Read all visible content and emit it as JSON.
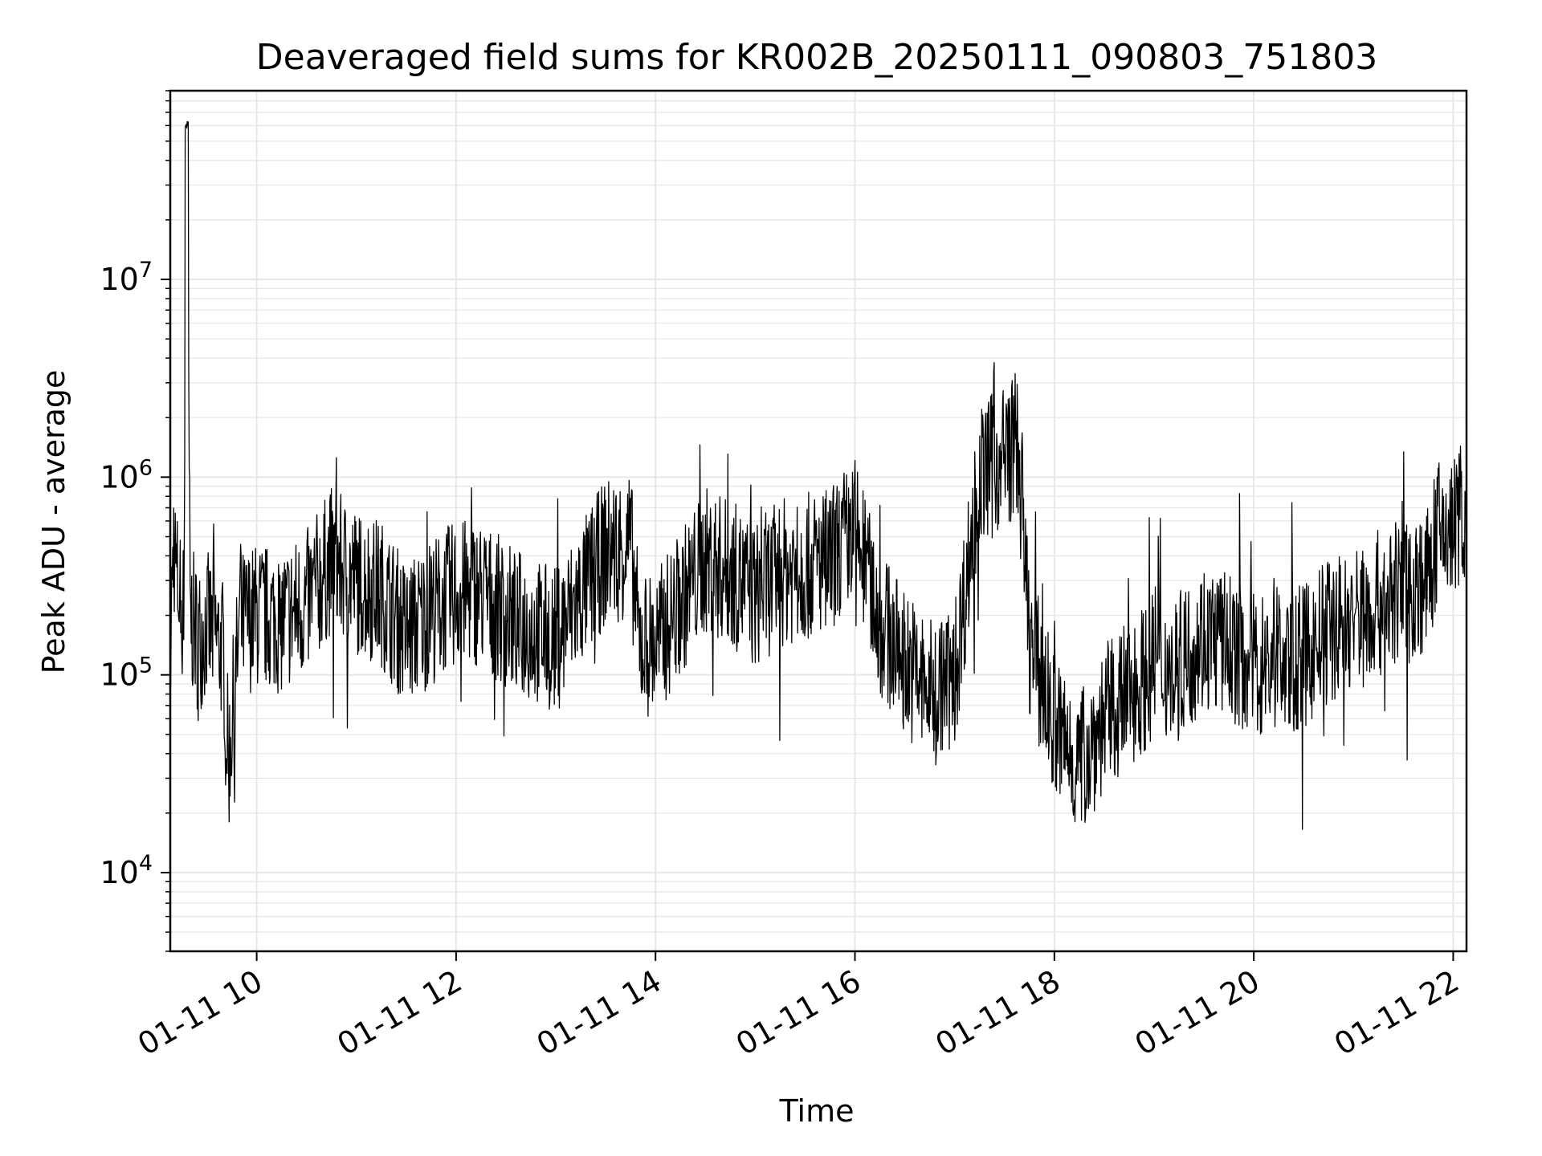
{
  "chart_data": {
    "type": "line",
    "title": "Deaveraged field sums for KR002B_20250111_090803_751803",
    "xlabel": "Time",
    "ylabel": "Peak ADU - average",
    "y_scale": "log",
    "grid": true,
    "legend": "none",
    "line_color": "#000000",
    "grid_color": "#e5e5e5",
    "xlim": [
      "2025-01-11 09:08",
      "2025-01-11 22:08"
    ],
    "ylim": [
      4000,
      90000000
    ],
    "x_ticks": [
      {
        "value": "2025-01-11 10:00",
        "label": "01-11 10"
      },
      {
        "value": "2025-01-11 12:00",
        "label": "01-11 12"
      },
      {
        "value": "2025-01-11 14:00",
        "label": "01-11 14"
      },
      {
        "value": "2025-01-11 16:00",
        "label": "01-11 16"
      },
      {
        "value": "2025-01-11 18:00",
        "label": "01-11 18"
      },
      {
        "value": "2025-01-11 20:00",
        "label": "01-11 20"
      },
      {
        "value": "2025-01-11 22:00",
        "label": "01-11 22"
      }
    ],
    "y_ticks": [
      {
        "value": 10000,
        "base": "10",
        "exp": "4"
      },
      {
        "value": 100000,
        "base": "10",
        "exp": "5"
      },
      {
        "value": 1000000,
        "base": "10",
        "exp": "6"
      },
      {
        "value": 10000000,
        "base": "10",
        "exp": "7"
      }
    ],
    "series": [
      {
        "x": [
          "2025-01-11 09:08",
          "2025-01-11 09:10",
          "2025-01-11 09:12",
          "2025-01-11 09:14",
          "2025-01-11 09:16",
          "2025-01-11 09:18",
          "2025-01-11 09:20",
          "2025-01-11 09:25",
          "2025-01-11 09:30",
          "2025-01-11 09:35",
          "2025-01-11 09:40",
          "2025-01-11 09:43",
          "2025-01-11 09:50",
          "2025-01-11 10:00",
          "2025-01-11 10:15",
          "2025-01-11 10:30",
          "2025-01-11 10:45",
          "2025-01-11 11:00",
          "2025-01-11 11:15",
          "2025-01-11 11:30",
          "2025-01-11 11:45",
          "2025-01-11 12:00",
          "2025-01-11 12:15",
          "2025-01-11 12:30",
          "2025-01-11 12:45",
          "2025-01-11 13:00",
          "2025-01-11 13:15",
          "2025-01-11 13:30",
          "2025-01-11 13:45",
          "2025-01-11 13:50",
          "2025-01-11 14:00",
          "2025-01-11 14:15",
          "2025-01-11 14:30",
          "2025-01-11 14:45",
          "2025-01-11 15:00",
          "2025-01-11 15:15",
          "2025-01-11 15:30",
          "2025-01-11 15:45",
          "2025-01-11 16:00",
          "2025-01-11 16:15",
          "2025-01-11 16:30",
          "2025-01-11 16:45",
          "2025-01-11 17:00",
          "2025-01-11 17:15",
          "2025-01-11 17:30",
          "2025-01-11 17:38",
          "2025-01-11 17:45",
          "2025-01-11 18:00",
          "2025-01-11 18:10",
          "2025-01-11 18:15",
          "2025-01-11 18:30",
          "2025-01-11 18:45",
          "2025-01-11 19:00",
          "2025-01-11 19:15",
          "2025-01-11 19:30",
          "2025-01-11 19:45",
          "2025-01-11 20:00",
          "2025-01-11 20:15",
          "2025-01-11 20:30",
          "2025-01-11 20:45",
          "2025-01-11 21:00",
          "2025-01-11 21:15",
          "2025-01-11 21:30",
          "2025-01-11 21:45",
          "2025-01-11 21:50",
          "2025-01-11 22:00",
          "2025-01-11 22:05",
          "2025-01-11 22:08"
        ],
        "y": [
          120000,
          500000,
          300000,
          250000,
          200000,
          60000000,
          200000,
          150000,
          180000,
          160000,
          130000,
          35000,
          180000,
          200000,
          190000,
          230000,
          380000,
          300000,
          260000,
          160000,
          210000,
          260000,
          260000,
          200000,
          170000,
          150000,
          250000,
          420000,
          460000,
          150000,
          140000,
          230000,
          380000,
          330000,
          250000,
          330000,
          350000,
          380000,
          550000,
          180000,
          120000,
          80000,
          100000,
          1000000,
          1300000,
          1500000,
          150000,
          55000,
          40000,
          35000,
          60000,
          80000,
          110000,
          110000,
          160000,
          140000,
          110000,
          120000,
          120000,
          170000,
          190000,
          230000,
          260000,
          300000,
          500000,
          550000,
          700000,
          600000
        ]
      }
    ]
  }
}
